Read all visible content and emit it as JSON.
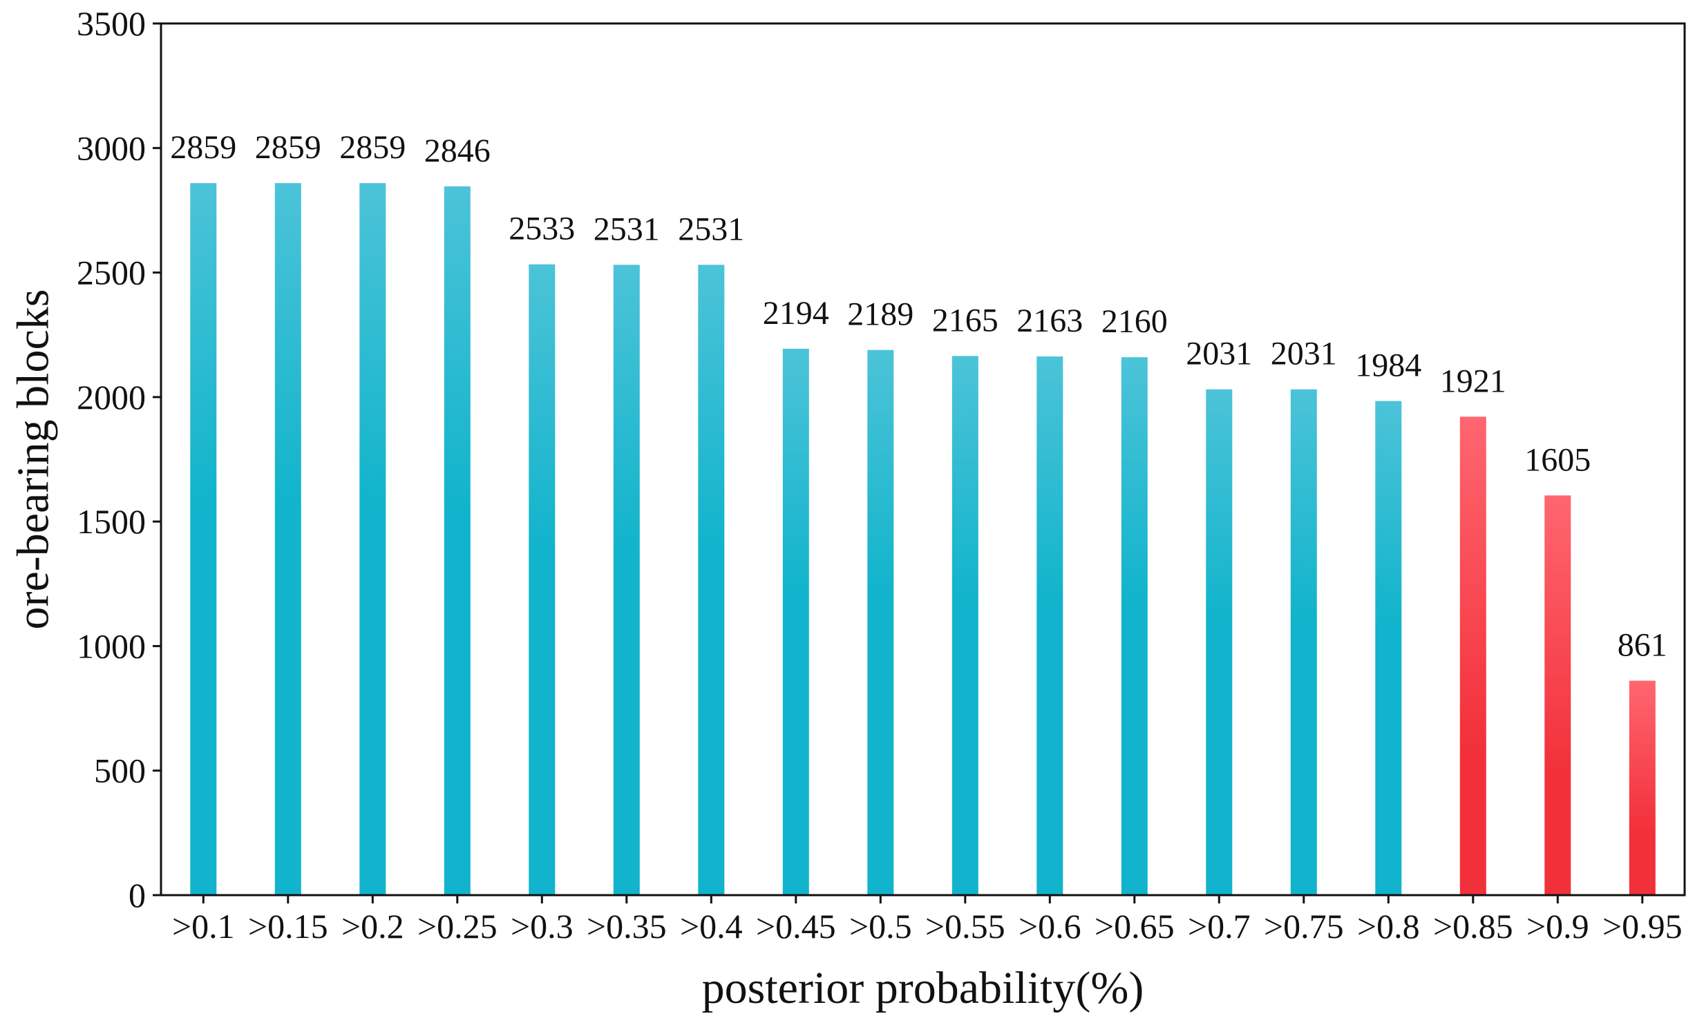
{
  "chart_data": {
    "type": "bar",
    "title": "",
    "xlabel": "posterior probability(%)",
    "ylabel": "ore-bearing blocks",
    "ylim": [
      0,
      3500
    ],
    "yticks": [
      0,
      500,
      1000,
      1500,
      2000,
      2500,
      3000,
      3500
    ],
    "grid": false,
    "legend": "none",
    "categories": [
      ">0.1",
      ">0.15",
      ">0.2",
      ">0.25",
      ">0.3",
      ">0.35",
      ">0.4",
      ">0.45",
      ">0.5",
      ">0.55",
      ">0.6",
      ">0.65",
      ">0.7",
      ">0.75",
      ">0.8",
      ">0.85",
      ">0.9",
      ">0.95"
    ],
    "values": [
      2859,
      2859,
      2859,
      2846,
      2533,
      2531,
      2531,
      2194,
      2189,
      2165,
      2163,
      2160,
      2031,
      2031,
      1984,
      1921,
      1605,
      861
    ],
    "highlighted_categories": [
      ">0.85",
      ">0.9",
      ">0.95"
    ],
    "colors": {
      "bar": "#11b4cc",
      "bar_top": "#4cc3d8",
      "highlight": "#f2303a",
      "highlight_top": "#ff6670",
      "axis": "#111111"
    }
  }
}
